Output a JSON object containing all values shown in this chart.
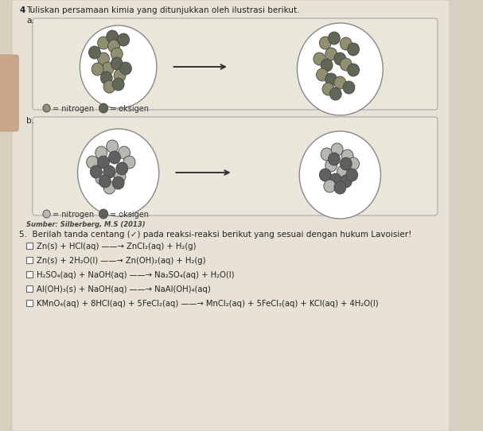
{
  "title_num": "4",
  "title_text": "Tuliskan persamaan kimia yang ditunjukkan oleh ilustrasi berikut.",
  "label_a": "a.",
  "label_b": "b.",
  "source_text": "Sumber: Silberberg, M.S (2013)",
  "section5_header": "5.  Berilah tanda centang (✓) pada reaksi-reaksi berikut yang sesuai dengan hukum Lavoisier!",
  "reactions": [
    "Zn(s) + HCl(aq) ——→ ZnCl₂(aq) + H₂(g)",
    "Zn(s) + 2H₂O(l) ——→ Zn(OH)₂(aq) + H₂(g)",
    "H₂SO₄(aq) + NaOH(aq) ——→ Na₂SO₄(aq) + H₂O(l)",
    "Al(OH)₃(s) + NaOH(aq) ——→ NaAl(OH)₄(aq)",
    "KMnO₄(aq) + 8HCl(aq) + 5FeCl₂(aq) ——→ MnCl₂(aq) + 5FeCl₃(aq) + KCl(aq) + 4H₂O(l)"
  ],
  "bg_color": "#d8cfc0",
  "page_color": "#e8e2d6",
  "box_color": "#ebe6da",
  "n_color_a": "#909070",
  "o_color_a": "#606855",
  "n_color_b": "#b8b8b0",
  "o_color_b": "#606060",
  "finger_color": "#c8a888"
}
